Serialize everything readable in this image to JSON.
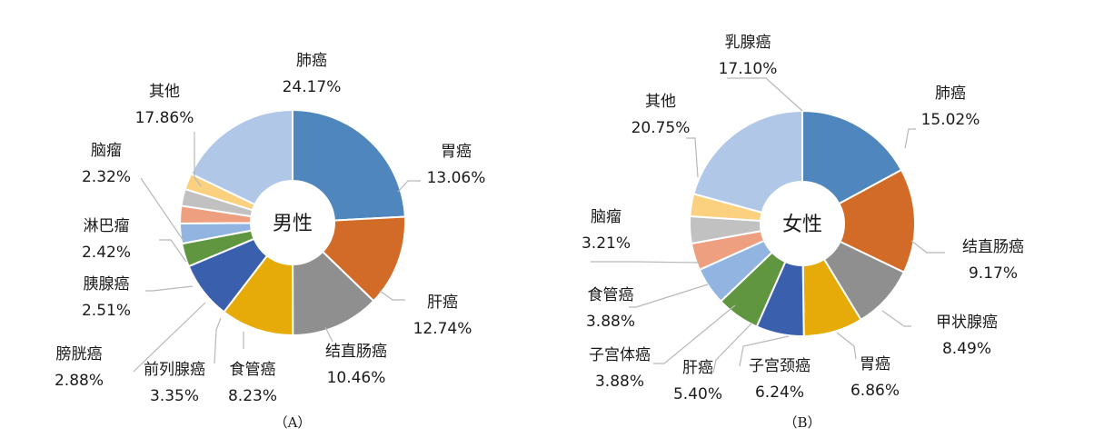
{
  "chart_data": [
    {
      "type": "pie",
      "variant": "donut",
      "center_label": "男性",
      "caption": "（A）",
      "slices": [
        {
          "name": "肺癌",
          "value": 24.17,
          "label": "24.17%",
          "color": "#4e86bd"
        },
        {
          "name": "胃癌",
          "value": 13.06,
          "label": "13.06%",
          "color": "#d26b27"
        },
        {
          "name": "肝癌",
          "value": 12.74,
          "label": "12.74%",
          "color": "#8f8f8f"
        },
        {
          "name": "结直肠癌",
          "value": 10.46,
          "label": "10.46%",
          "color": "#e6ab08"
        },
        {
          "name": "食管癌",
          "value": 8.23,
          "label": "8.23%",
          "color": "#3a60ad"
        },
        {
          "name": "前列腺癌",
          "value": 3.35,
          "label": "3.35%",
          "color": "#5f963f"
        },
        {
          "name": "膀胱癌",
          "value": 2.88,
          "label": "2.88%",
          "color": "#91b4e0"
        },
        {
          "name": "胰腺癌",
          "value": 2.51,
          "label": "2.51%",
          "color": "#ee9f7f"
        },
        {
          "name": "淋巴瘤",
          "value": 2.42,
          "label": "2.42%",
          "color": "#c1c1c1"
        },
        {
          "name": "脑瘤",
          "value": 2.32,
          "label": "2.32%",
          "color": "#fbd17f"
        },
        {
          "name": "其他",
          "value": 17.86,
          "label": "17.86%",
          "color": "#b0c7e7"
        }
      ]
    },
    {
      "type": "pie",
      "variant": "donut",
      "center_label": "女性",
      "caption": "（B）",
      "slices": [
        {
          "name": "乳腺癌",
          "value": 17.1,
          "label": "17.10%",
          "color": "#4e86bd"
        },
        {
          "name": "肺癌",
          "value": 15.02,
          "label": "15.02%",
          "color": "#d26b27"
        },
        {
          "name": "结直肠癌",
          "value": 9.17,
          "label": "9.17%",
          "color": "#8f8f8f"
        },
        {
          "name": "甲状腺癌",
          "value": 8.49,
          "label": "8.49%",
          "color": "#e6ab08"
        },
        {
          "name": "胃癌",
          "value": 6.86,
          "label": "6.86%",
          "color": "#3a60ad"
        },
        {
          "name": "子宫颈癌",
          "value": 6.24,
          "label": "6.24%",
          "color": "#5f963f"
        },
        {
          "name": "肝癌",
          "value": 5.4,
          "label": "5.40%",
          "color": "#91b4e0"
        },
        {
          "name": "子宫体癌",
          "value": 3.88,
          "label": "3.88%",
          "color": "#ee9f7f"
        },
        {
          "name": "食管癌",
          "value": 3.88,
          "label": "3.88%",
          "color": "#c1c1c1"
        },
        {
          "name": "脑瘤",
          "value": 3.21,
          "label": "3.21%",
          "color": "#fbd17f"
        },
        {
          "name": "其他",
          "value": 20.75,
          "label": "20.75%",
          "color": "#b0c7e7"
        }
      ]
    }
  ]
}
